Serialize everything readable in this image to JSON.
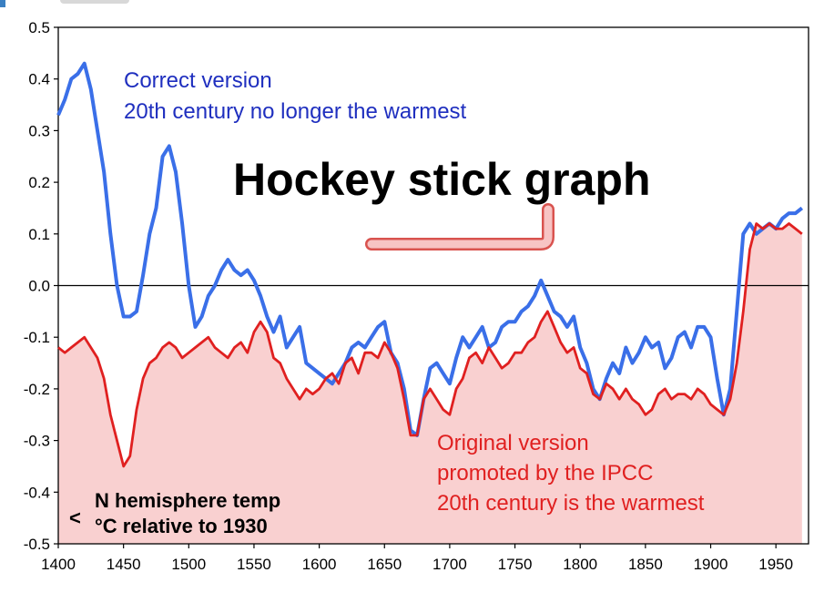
{
  "chart_data": {
    "type": "area",
    "x_ticks": [
      "1400",
      "1450",
      "1500",
      "1550",
      "1600",
      "1650",
      "1700",
      "1750",
      "1800",
      "1850",
      "1900",
      "1950"
    ],
    "y_ticks": [
      "0.5",
      "0.4",
      "0.3",
      "0.2",
      "0.1",
      "0.0",
      "-0.1",
      "-0.2",
      "-0.3",
      "-0.4",
      "-0.5"
    ],
    "xlim": [
      1400,
      1975
    ],
    "ylim": [
      -0.5,
      0.5
    ],
    "grid": false,
    "zero_line": true,
    "annotations": {
      "correct_line1": "Correct version",
      "correct_line2": "20th century no longer the warmest",
      "title": "Hockey stick graph",
      "original_line1": "Original version",
      "original_line2": "promoted by the IPCC",
      "original_line3": "20th century is the warmest",
      "axis_arrow": "<",
      "axis_line1": "N hemisphere temp",
      "axis_line2": "°C relative to 1930"
    },
    "colors": {
      "correct": "#3a6fe8",
      "original": "#e02020",
      "fill": "#f9d0d0",
      "stick": "#f4b8b8"
    },
    "series": [
      {
        "name": "Correct version",
        "x": [
          1400,
          1405,
          1410,
          1415,
          1420,
          1425,
          1430,
          1435,
          1440,
          1445,
          1450,
          1455,
          1460,
          1465,
          1470,
          1475,
          1480,
          1485,
          1490,
          1495,
          1500,
          1505,
          1510,
          1515,
          1520,
          1525,
          1530,
          1535,
          1540,
          1545,
          1550,
          1555,
          1560,
          1565,
          1570,
          1575,
          1580,
          1585,
          1590,
          1595,
          1600,
          1605,
          1610,
          1615,
          1620,
          1625,
          1630,
          1635,
          1640,
          1645,
          1650,
          1655,
          1660,
          1665,
          1670,
          1675,
          1680,
          1685,
          1690,
          1695,
          1700,
          1705,
          1710,
          1715,
          1720,
          1725,
          1730,
          1735,
          1740,
          1745,
          1750,
          1755,
          1760,
          1765,
          1770,
          1775,
          1780,
          1785,
          1790,
          1795,
          1800,
          1805,
          1810,
          1815,
          1820,
          1825,
          1830,
          1835,
          1840,
          1845,
          1850,
          1855,
          1860,
          1865,
          1870,
          1875,
          1880,
          1885,
          1890,
          1895,
          1900,
          1905,
          1910,
          1915,
          1920,
          1925,
          1930,
          1935,
          1940,
          1945,
          1950,
          1955,
          1960,
          1965,
          1970
        ],
        "values": [
          0.33,
          0.36,
          0.4,
          0.41,
          0.43,
          0.38,
          0.3,
          0.22,
          0.1,
          0.0,
          -0.06,
          -0.06,
          -0.05,
          0.02,
          0.1,
          0.15,
          0.25,
          0.27,
          0.22,
          0.12,
          0.0,
          -0.08,
          -0.06,
          -0.02,
          0.0,
          0.03,
          0.05,
          0.03,
          0.02,
          0.03,
          0.01,
          -0.02,
          -0.06,
          -0.09,
          -0.06,
          -0.12,
          -0.1,
          -0.08,
          -0.15,
          -0.16,
          -0.17,
          -0.18,
          -0.19,
          -0.17,
          -0.15,
          -0.12,
          -0.11,
          -0.12,
          -0.1,
          -0.08,
          -0.07,
          -0.13,
          -0.15,
          -0.2,
          -0.28,
          -0.29,
          -0.22,
          -0.16,
          -0.15,
          -0.17,
          -0.19,
          -0.14,
          -0.1,
          -0.12,
          -0.1,
          -0.08,
          -0.12,
          -0.11,
          -0.08,
          -0.07,
          -0.07,
          -0.05,
          -0.04,
          -0.02,
          0.01,
          -0.02,
          -0.05,
          -0.06,
          -0.08,
          -0.06,
          -0.12,
          -0.15,
          -0.2,
          -0.22,
          -0.18,
          -0.15,
          -0.17,
          -0.12,
          -0.15,
          -0.13,
          -0.1,
          -0.12,
          -0.11,
          -0.16,
          -0.14,
          -0.1,
          -0.09,
          -0.12,
          -0.08,
          -0.08,
          -0.1,
          -0.18,
          -0.25,
          -0.2,
          -0.05,
          0.1,
          0.12,
          0.1,
          0.11,
          0.12,
          0.11,
          0.13,
          0.14,
          0.14,
          0.15
        ]
      },
      {
        "name": "Original version",
        "x": [
          1400,
          1405,
          1410,
          1415,
          1420,
          1425,
          1430,
          1435,
          1440,
          1445,
          1450,
          1455,
          1460,
          1465,
          1470,
          1475,
          1480,
          1485,
          1490,
          1495,
          1500,
          1505,
          1510,
          1515,
          1520,
          1525,
          1530,
          1535,
          1540,
          1545,
          1550,
          1555,
          1560,
          1565,
          1570,
          1575,
          1580,
          1585,
          1590,
          1595,
          1600,
          1605,
          1610,
          1615,
          1620,
          1625,
          1630,
          1635,
          1640,
          1645,
          1650,
          1655,
          1660,
          1665,
          1670,
          1675,
          1680,
          1685,
          1690,
          1695,
          1700,
          1705,
          1710,
          1715,
          1720,
          1725,
          1730,
          1735,
          1740,
          1745,
          1750,
          1755,
          1760,
          1765,
          1770,
          1775,
          1780,
          1785,
          1790,
          1795,
          1800,
          1805,
          1810,
          1815,
          1820,
          1825,
          1830,
          1835,
          1840,
          1845,
          1850,
          1855,
          1860,
          1865,
          1870,
          1875,
          1880,
          1885,
          1890,
          1895,
          1900,
          1905,
          1910,
          1915,
          1920,
          1925,
          1930,
          1935,
          1940,
          1945,
          1950,
          1955,
          1960,
          1965,
          1970
        ],
        "values": [
          -0.12,
          -0.13,
          -0.12,
          -0.11,
          -0.1,
          -0.12,
          -0.14,
          -0.18,
          -0.25,
          -0.3,
          -0.35,
          -0.33,
          -0.24,
          -0.18,
          -0.15,
          -0.14,
          -0.12,
          -0.11,
          -0.12,
          -0.14,
          -0.13,
          -0.12,
          -0.11,
          -0.1,
          -0.12,
          -0.13,
          -0.14,
          -0.12,
          -0.11,
          -0.13,
          -0.09,
          -0.07,
          -0.09,
          -0.14,
          -0.15,
          -0.18,
          -0.2,
          -0.22,
          -0.2,
          -0.21,
          -0.2,
          -0.18,
          -0.17,
          -0.19,
          -0.15,
          -0.14,
          -0.17,
          -0.13,
          -0.13,
          -0.14,
          -0.11,
          -0.13,
          -0.16,
          -0.22,
          -0.29,
          -0.29,
          -0.22,
          -0.2,
          -0.22,
          -0.24,
          -0.25,
          -0.2,
          -0.18,
          -0.14,
          -0.13,
          -0.15,
          -0.12,
          -0.14,
          -0.16,
          -0.15,
          -0.13,
          -0.13,
          -0.11,
          -0.1,
          -0.07,
          -0.05,
          -0.08,
          -0.11,
          -0.13,
          -0.12,
          -0.16,
          -0.17,
          -0.21,
          -0.22,
          -0.19,
          -0.2,
          -0.22,
          -0.2,
          -0.22,
          -0.23,
          -0.25,
          -0.24,
          -0.21,
          -0.2,
          -0.22,
          -0.21,
          -0.21,
          -0.22,
          -0.2,
          -0.21,
          -0.23,
          -0.24,
          -0.25,
          -0.22,
          -0.15,
          -0.05,
          0.07,
          0.12,
          0.11,
          0.12,
          0.11,
          0.11,
          0.12,
          0.11,
          0.1
        ]
      }
    ]
  }
}
